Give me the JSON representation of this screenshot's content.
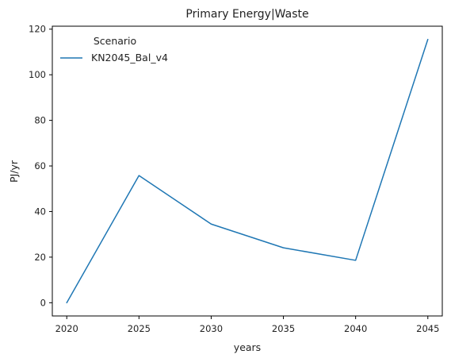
{
  "chart_data": {
    "type": "line",
    "title": "Primary Energy|Waste",
    "xlabel": "years",
    "ylabel": "PJ/yr",
    "x": [
      2020,
      2025,
      2030,
      2035,
      2040,
      2045
    ],
    "xticks": [
      "2020",
      "2025",
      "2030",
      "2035",
      "2040",
      "2045"
    ],
    "yticks": [
      "0",
      "20",
      "40",
      "60",
      "80",
      "100",
      "120"
    ],
    "xlim": [
      2019.0,
      2046.0
    ],
    "ylim": [
      -5.8,
      121.3
    ],
    "grid": false,
    "legend": {
      "title": "Scenario",
      "placement": "top-left"
    },
    "series": [
      {
        "name": "KN2045_Bal_v4",
        "color": "#1f77b4",
        "values": [
          0.0,
          55.8,
          34.5,
          24.1,
          18.6,
          115.5
        ]
      }
    ]
  }
}
